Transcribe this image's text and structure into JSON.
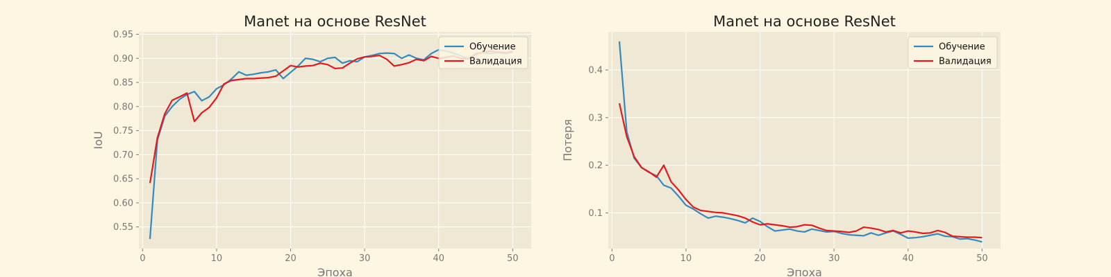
{
  "chart_data": [
    {
      "type": "line",
      "title": "Manet на основе ResNet",
      "xlabel": "Эпоха",
      "ylabel": "IoU",
      "xlim": [
        -0.5,
        52.5
      ],
      "ylim": [
        0.505,
        0.955
      ],
      "xticks": [
        "0",
        "10",
        "20",
        "30",
        "40",
        "50"
      ],
      "yticks": [
        "0.55",
        "0.60",
        "0.65",
        "0.70",
        "0.75",
        "0.80",
        "0.85",
        "0.90",
        "0.95"
      ],
      "grid": true,
      "legend": "top-right",
      "x": [
        1,
        2,
        3,
        4,
        5,
        6,
        7,
        8,
        9,
        10,
        11,
        12,
        13,
        14,
        15,
        16,
        17,
        18,
        19,
        20,
        21,
        22,
        23,
        24,
        25,
        26,
        27,
        28,
        29,
        30,
        31,
        32,
        33,
        34,
        35,
        36,
        37,
        38,
        39,
        40,
        41,
        42,
        43,
        44,
        45,
        46,
        47,
        48,
        49,
        50
      ],
      "series": [
        {
          "name": "Обучение",
          "color": "#348abd",
          "values": [
            0.525,
            0.73,
            0.78,
            0.8,
            0.815,
            0.825,
            0.831,
            0.812,
            0.82,
            0.837,
            0.845,
            0.857,
            0.872,
            0.865,
            0.867,
            0.87,
            0.872,
            0.876,
            0.858,
            0.871,
            0.884,
            0.9,
            0.898,
            0.893,
            0.9,
            0.902,
            0.89,
            0.895,
            0.893,
            0.903,
            0.906,
            0.91,
            0.911,
            0.91,
            0.9,
            0.907,
            0.9,
            0.897,
            0.91,
            0.918,
            0.915,
            0.911,
            0.905,
            0.9,
            0.91,
            0.912,
            0.91,
            0.912,
            0.91,
            0.913
          ]
        },
        {
          "name": "Валидация",
          "color": "#e31a1c",
          "values": [
            0.641,
            0.735,
            0.785,
            0.813,
            0.82,
            0.828,
            0.769,
            0.787,
            0.798,
            0.818,
            0.847,
            0.854,
            0.856,
            0.858,
            0.858,
            0.859,
            0.86,
            0.863,
            0.874,
            0.885,
            0.882,
            0.884,
            0.885,
            0.89,
            0.887,
            0.879,
            0.88,
            0.89,
            0.899,
            0.903,
            0.904,
            0.906,
            0.898,
            0.884,
            0.887,
            0.891,
            0.898,
            0.895,
            0.904,
            0.9,
            0.902,
            0.905,
            0.9,
            0.899,
            0.908,
            0.913,
            0.915,
            0.913,
            0.912,
            0.914
          ]
        }
      ]
    },
    {
      "type": "line",
      "title": "Manet на основе ResNet",
      "xlabel": "Эпоха",
      "ylabel": "Потеря",
      "xlim": [
        -0.5,
        52.5
      ],
      "ylim": [
        0.025,
        0.48
      ],
      "xticks": [
        "0",
        "10",
        "20",
        "30",
        "40",
        "50"
      ],
      "yticks": [
        "0.1",
        "0.2",
        "0.3",
        "0.4"
      ],
      "grid": true,
      "legend": "top-right",
      "x": [
        1,
        2,
        3,
        4,
        5,
        6,
        7,
        8,
        9,
        10,
        11,
        12,
        13,
        14,
        15,
        16,
        17,
        18,
        19,
        20,
        21,
        22,
        23,
        24,
        25,
        26,
        27,
        28,
        29,
        30,
        31,
        32,
        33,
        34,
        35,
        36,
        37,
        38,
        39,
        40,
        41,
        42,
        43,
        44,
        45,
        46,
        47,
        48,
        49,
        50
      ],
      "series": [
        {
          "name": "Обучение",
          "color": "#348abd",
          "values": [
            0.46,
            0.27,
            0.215,
            0.195,
            0.185,
            0.178,
            0.158,
            0.152,
            0.135,
            0.116,
            0.108,
            0.098,
            0.089,
            0.093,
            0.091,
            0.088,
            0.084,
            0.079,
            0.089,
            0.082,
            0.071,
            0.062,
            0.064,
            0.066,
            0.062,
            0.06,
            0.066,
            0.063,
            0.06,
            0.061,
            0.057,
            0.054,
            0.053,
            0.052,
            0.058,
            0.053,
            0.058,
            0.062,
            0.055,
            0.047,
            0.048,
            0.05,
            0.053,
            0.056,
            0.051,
            0.05,
            0.045,
            0.046,
            0.043,
            0.039
          ]
        },
        {
          "name": "Валидация",
          "color": "#e31a1c",
          "values": [
            0.33,
            0.26,
            0.218,
            0.195,
            0.186,
            0.175,
            0.2,
            0.165,
            0.148,
            0.128,
            0.112,
            0.105,
            0.103,
            0.101,
            0.1,
            0.097,
            0.094,
            0.089,
            0.081,
            0.075,
            0.077,
            0.075,
            0.073,
            0.07,
            0.071,
            0.075,
            0.074,
            0.068,
            0.063,
            0.062,
            0.061,
            0.059,
            0.062,
            0.07,
            0.068,
            0.065,
            0.06,
            0.063,
            0.058,
            0.062,
            0.06,
            0.057,
            0.058,
            0.063,
            0.059,
            0.051,
            0.05,
            0.049,
            0.049,
            0.048
          ]
        }
      ]
    }
  ]
}
